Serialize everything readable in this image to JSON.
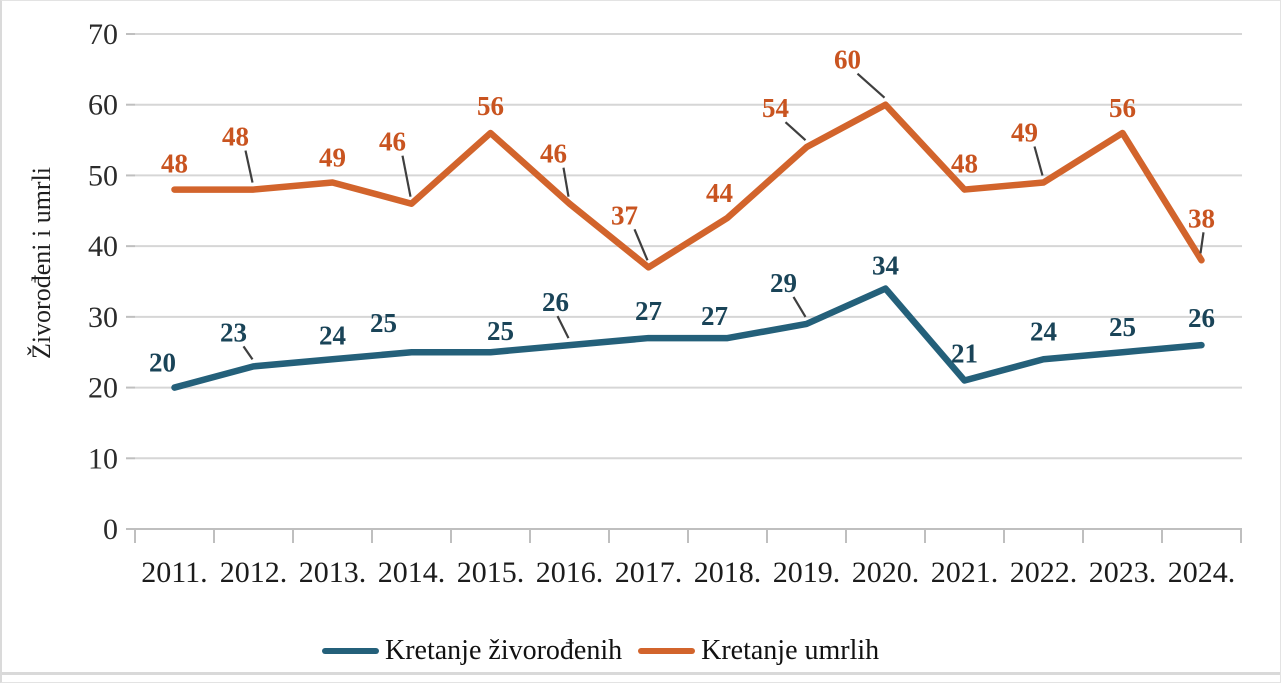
{
  "chart_data": {
    "type": "line",
    "title": "",
    "xlabel": "",
    "ylabel": "Živorođeni i umrli",
    "categories": [
      "2011.",
      "2012.",
      "2013.",
      "2014.",
      "2015.",
      "2016.",
      "2017.",
      "2018.",
      "2019.",
      "2020.",
      "2021.",
      "2022.",
      "2023.",
      "2024."
    ],
    "ylim": [
      0,
      70
    ],
    "ytick_step": 10,
    "ytick_labels": [
      "0",
      "10",
      "20",
      "30",
      "40",
      "50",
      "60",
      "70"
    ],
    "grid": "horizontal",
    "legend_position": "bottom",
    "colors": {
      "gridline": "#d6d6d6",
      "axis_line": "#bfbfbf",
      "tick_text": "#2b2b2b",
      "leader_line": "#3f3f3f"
    },
    "series": [
      {
        "name": "Kretanje živorođenih",
        "color": "#24607a",
        "label_color": "#1a4458",
        "values": [
          20,
          23,
          24,
          25,
          25,
          26,
          27,
          27,
          29,
          34,
          21,
          24,
          25,
          26
        ],
        "label_offsets": [
          [
            -12,
            -25
          ],
          [
            -20,
            -34
          ],
          [
            0,
            -24
          ],
          [
            -28,
            -29
          ],
          [
            10,
            -21
          ],
          [
            -14,
            -43
          ],
          [
            0,
            -27
          ],
          [
            -13,
            -22
          ],
          [
            -23,
            -41
          ],
          [
            0,
            -23
          ],
          [
            0,
            -27
          ],
          [
            0,
            -28
          ],
          [
            0,
            -25
          ],
          [
            0,
            -27
          ]
        ],
        "leader_indexes": [
          1,
          5,
          8
        ]
      },
      {
        "name": "Kretanje umrlih",
        "color": "#d2642c",
        "label_color": "#c95420",
        "values": [
          48,
          48,
          49,
          46,
          56,
          46,
          37,
          44,
          54,
          60,
          48,
          49,
          56,
          38
        ],
        "label_offsets": [
          [
            0,
            -26
          ],
          [
            -18,
            -53
          ],
          [
            0,
            -25
          ],
          [
            -19,
            -62
          ],
          [
            0,
            -27
          ],
          [
            -16,
            -50
          ],
          [
            -24,
            -52
          ],
          [
            -8,
            -25
          ],
          [
            -31,
            -39
          ],
          [
            -38,
            -45
          ],
          [
            0,
            -26
          ],
          [
            -19,
            -50
          ],
          [
            0,
            -25
          ],
          [
            0,
            -42
          ]
        ],
        "leader_indexes": [
          1,
          3,
          5,
          6,
          8,
          9,
          11,
          13
        ]
      }
    ]
  }
}
